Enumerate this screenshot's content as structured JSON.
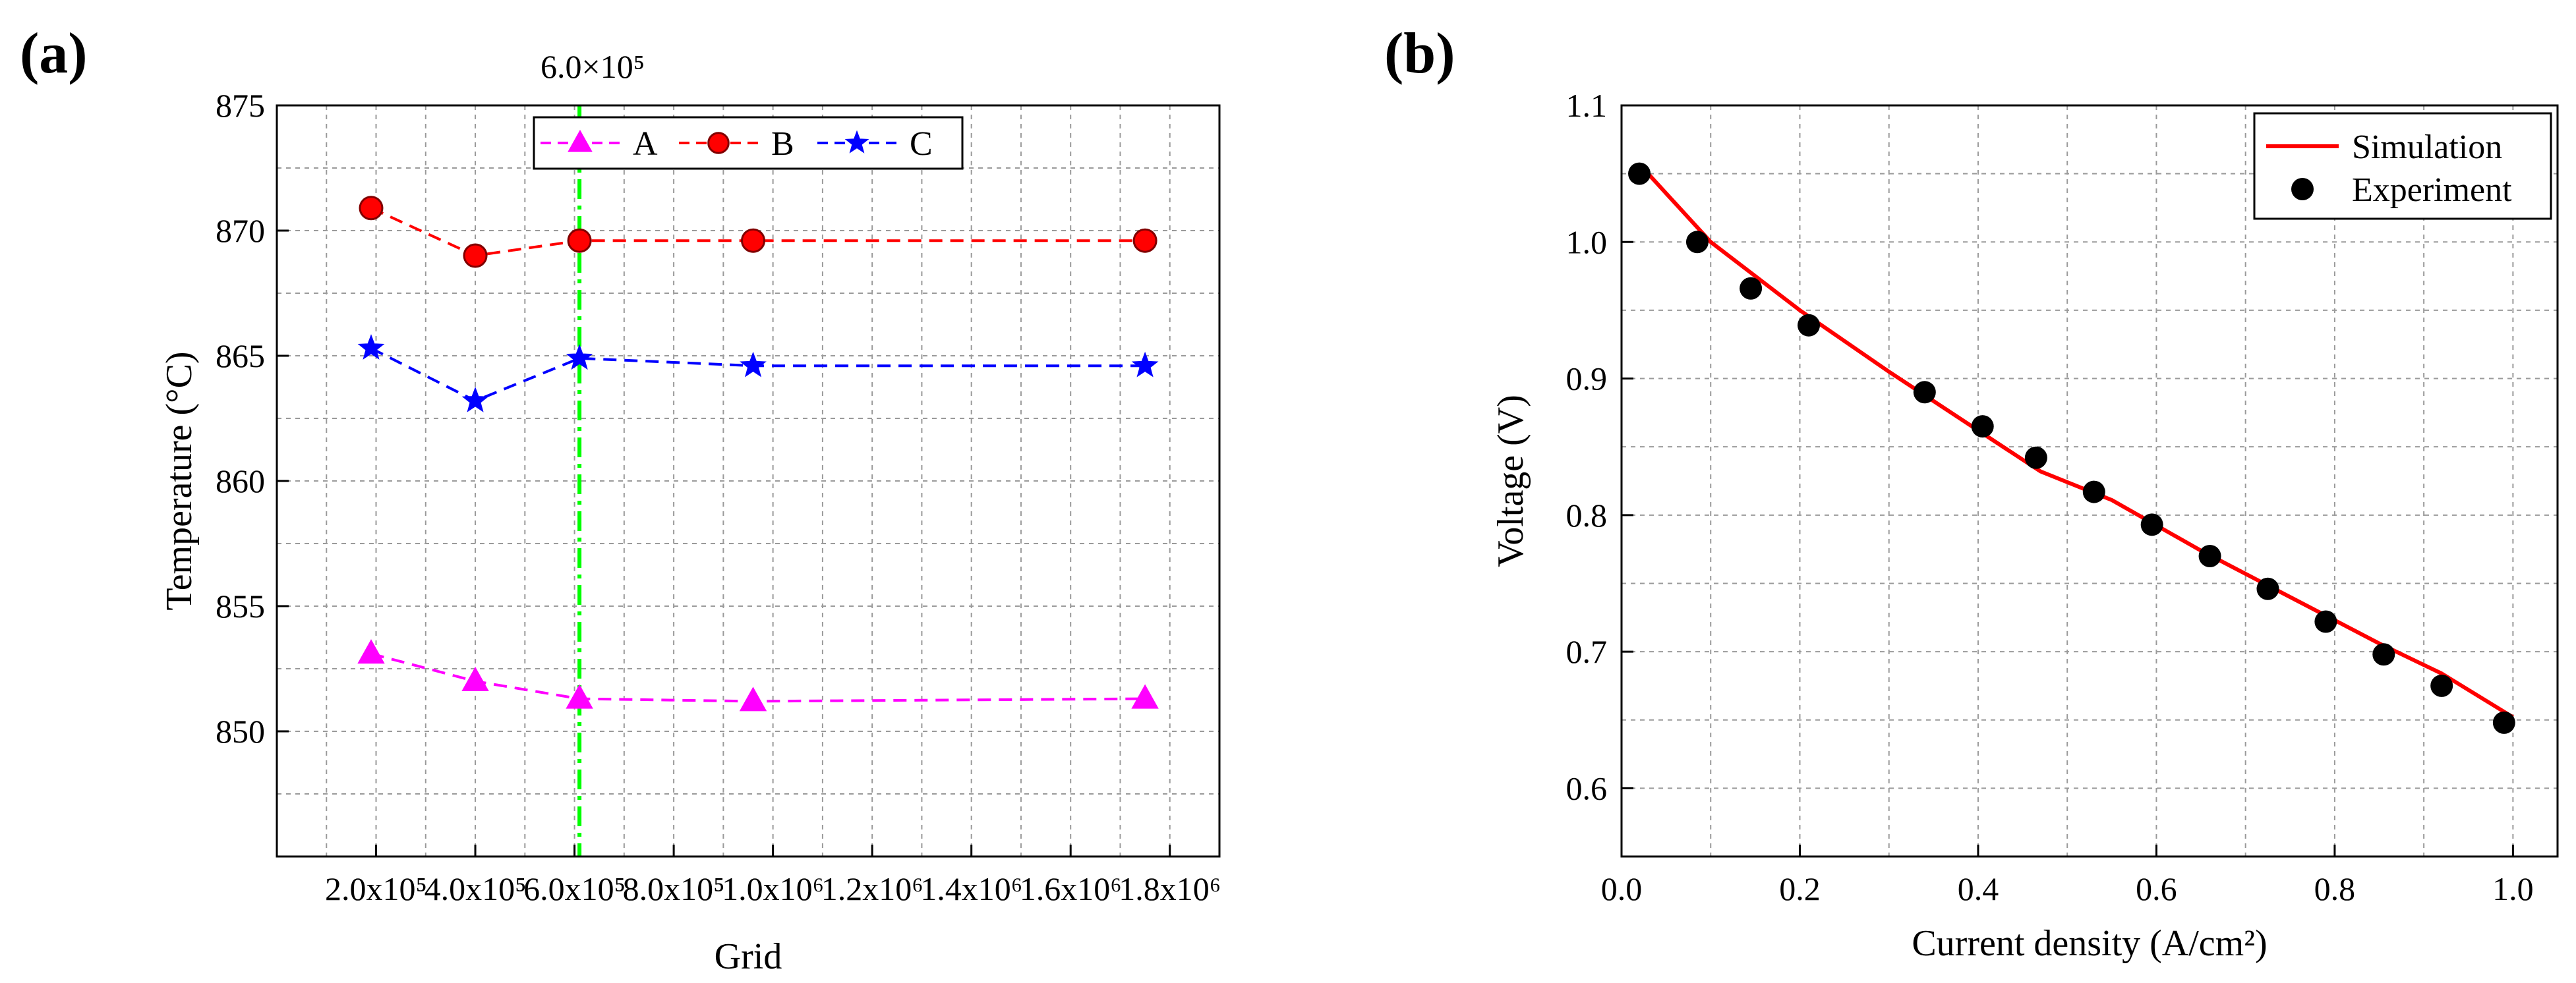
{
  "chart_data": [
    {
      "type": "line",
      "panel": "(a)",
      "title": "",
      "xlabel": "Grid",
      "ylabel": "Temperature (°C)",
      "xlim": [
        0,
        1900000
      ],
      "ylim": [
        845,
        875
      ],
      "x_ticks": [
        200000,
        400000,
        600000,
        800000,
        1000000,
        1200000,
        1400000,
        1600000,
        1800000
      ],
      "x_tick_labels": [
        "2.0x10⁵",
        "4.0x10⁵",
        "6.0x10⁵",
        "8.0x10⁵",
        "1.0x10⁶",
        "1.2x10⁶",
        "1.4x10⁶",
        "1.6x10⁶",
        "1.8x10⁶"
      ],
      "y_ticks": [
        850,
        855,
        860,
        865,
        870,
        875
      ],
      "y_tick_labels": [
        "850",
        "855",
        "860",
        "865",
        "870",
        "875"
      ],
      "grid": true,
      "legend": "top-center",
      "series": [
        {
          "name": "A",
          "color": "#ff00ff",
          "marker": "triangle",
          "x": [
            190000,
            400000,
            610000,
            960000,
            1750000
          ],
          "values": [
            853.1,
            852.0,
            851.3,
            851.2,
            851.3
          ]
        },
        {
          "name": "B",
          "color": "#ff0000",
          "marker": "circle",
          "x": [
            190000,
            400000,
            610000,
            960000,
            1750000
          ],
          "values": [
            870.9,
            869.0,
            869.6,
            869.6,
            869.6
          ]
        },
        {
          "name": "C",
          "color": "#0000ff",
          "marker": "star",
          "x": [
            190000,
            400000,
            610000,
            960000,
            1750000
          ],
          "values": [
            865.3,
            863.2,
            864.9,
            864.6,
            864.6
          ]
        }
      ],
      "annotation": {
        "text": "6.0×10⁵",
        "x": 610000,
        "color": "#00ff00"
      }
    },
    {
      "type": "line",
      "panel": "(b)",
      "title": "",
      "xlabel": "Current density (A/cm²)",
      "ylabel": "Voltage (V)",
      "xlim": [
        0,
        1.05
      ],
      "ylim": [
        0.55,
        1.1
      ],
      "x_ticks": [
        0.0,
        0.2,
        0.4,
        0.6,
        0.8,
        1.0
      ],
      "x_tick_labels": [
        "0.0",
        "0.2",
        "0.4",
        "0.6",
        "0.8",
        "1.0"
      ],
      "y_ticks": [
        0.6,
        0.7,
        0.8,
        0.9,
        1.0,
        1.1
      ],
      "y_tick_labels": [
        "0.6",
        "0.7",
        "0.8",
        "0.9",
        "1.0",
        "1.1"
      ],
      "grid": true,
      "legend": "top-right",
      "series": [
        {
          "name": "Simulation",
          "color": "#ff0000",
          "style": "line",
          "x": [
            0.02,
            0.1,
            0.2,
            0.3,
            0.4,
            0.47,
            0.55,
            0.65,
            0.75,
            0.85,
            0.92,
            1.0
          ],
          "values": [
            1.057,
            1.0,
            0.95,
            0.905,
            0.862,
            0.832,
            0.811,
            0.774,
            0.74,
            0.706,
            0.684,
            0.652
          ]
        },
        {
          "name": "Experiment",
          "color": "#000000",
          "style": "marker",
          "x": [
            0.02,
            0.085,
            0.145,
            0.21,
            0.34,
            0.405,
            0.465,
            0.53,
            0.595,
            0.66,
            0.725,
            0.79,
            0.855,
            0.92,
            0.99
          ],
          "values": [
            1.05,
            1.0,
            0.966,
            0.939,
            0.89,
            0.865,
            0.842,
            0.817,
            0.793,
            0.77,
            0.746,
            0.722,
            0.698,
            0.675,
            0.648
          ]
        }
      ]
    }
  ]
}
